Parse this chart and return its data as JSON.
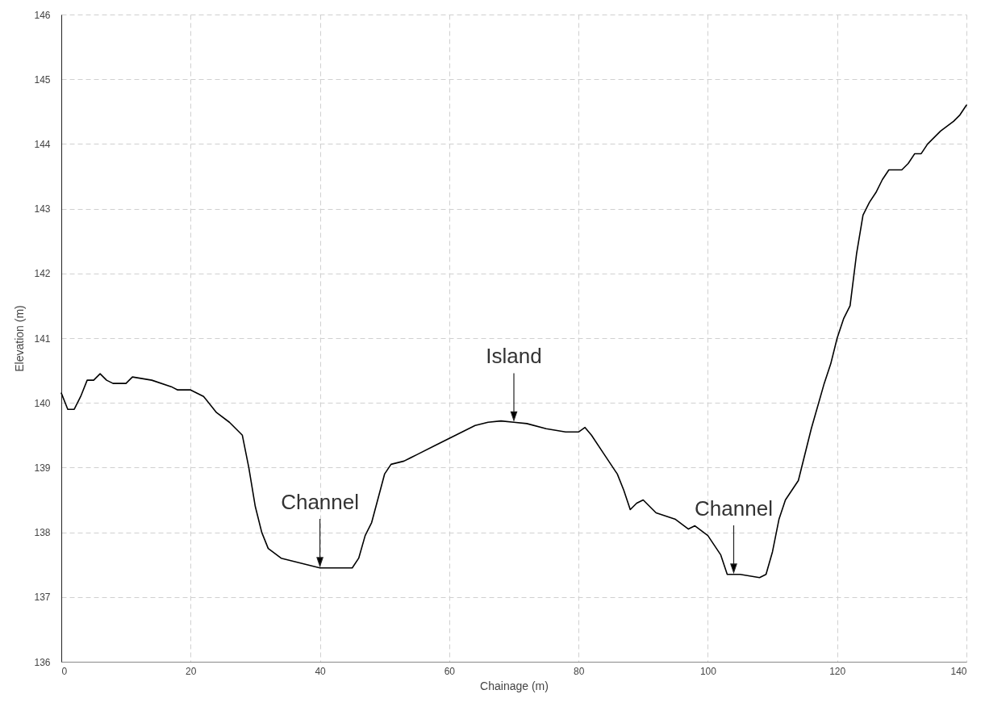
{
  "chart_data": {
    "type": "line",
    "xlabel": "Chainage (m)",
    "ylabel": "Elevation (m)",
    "x": [
      0,
      1,
      2,
      3,
      4,
      5,
      6,
      7,
      8,
      10,
      11,
      14,
      17,
      18,
      20,
      22,
      24,
      26,
      28,
      29,
      30,
      31,
      32,
      34,
      36,
      38,
      40,
      42,
      45,
      46,
      47,
      48,
      50,
      51,
      53,
      55,
      58,
      60,
      62,
      64,
      66,
      68,
      70,
      72,
      75,
      78,
      80,
      81,
      82,
      84,
      86,
      87,
      88,
      89,
      90,
      92,
      95,
      97,
      98,
      100,
      101,
      102,
      103,
      105,
      108,
      109,
      110,
      111,
      112,
      114,
      116,
      118,
      119,
      120,
      121,
      122,
      123,
      124,
      125,
      126,
      127,
      128,
      130,
      131,
      132,
      133,
      134,
      136,
      138,
      139,
      140
    ],
    "series": [
      {
        "color": "#000000",
        "values": [
          140.15,
          139.9,
          139.9,
          140.1,
          140.35,
          140.35,
          140.45,
          140.35,
          140.3,
          140.3,
          140.4,
          140.35,
          140.25,
          140.2,
          140.2,
          140.1,
          139.85,
          139.7,
          139.5,
          139.0,
          138.4,
          138.0,
          137.75,
          137.6,
          137.55,
          137.5,
          137.45,
          137.45,
          137.45,
          137.6,
          137.95,
          138.15,
          138.9,
          139.05,
          139.1,
          139.2,
          139.35,
          139.45,
          139.55,
          139.65,
          139.7,
          139.72,
          139.7,
          139.68,
          139.6,
          139.55,
          139.55,
          139.62,
          139.5,
          139.2,
          138.9,
          138.65,
          138.35,
          138.45,
          138.5,
          138.3,
          138.2,
          138.05,
          138.1,
          137.95,
          137.8,
          137.65,
          137.35,
          137.35,
          137.3,
          137.35,
          137.7,
          138.2,
          138.5,
          138.8,
          139.6,
          140.3,
          140.6,
          141.0,
          141.3,
          141.5,
          142.3,
          142.9,
          143.1,
          143.25,
          143.45,
          143.6,
          143.6,
          143.7,
          143.85,
          143.85,
          144.0,
          144.2,
          144.35,
          144.45,
          144.6
        ]
      }
    ],
    "xlim": [
      0,
      140
    ],
    "xticks": [
      0,
      20,
      40,
      60,
      80,
      100,
      120,
      140
    ],
    "ylim": [
      136,
      146
    ],
    "yticks": [
      136,
      137,
      138,
      139,
      140,
      141,
      142,
      143,
      144,
      145,
      146
    ],
    "grid": true,
    "line_style": "solid",
    "annotations": [
      {
        "text": "Channel",
        "x": 40,
        "y": 137.45
      },
      {
        "text": "Island",
        "x": 70,
        "y": 139.7
      },
      {
        "text": "Channel",
        "x": 104,
        "y": 137.35
      }
    ]
  }
}
